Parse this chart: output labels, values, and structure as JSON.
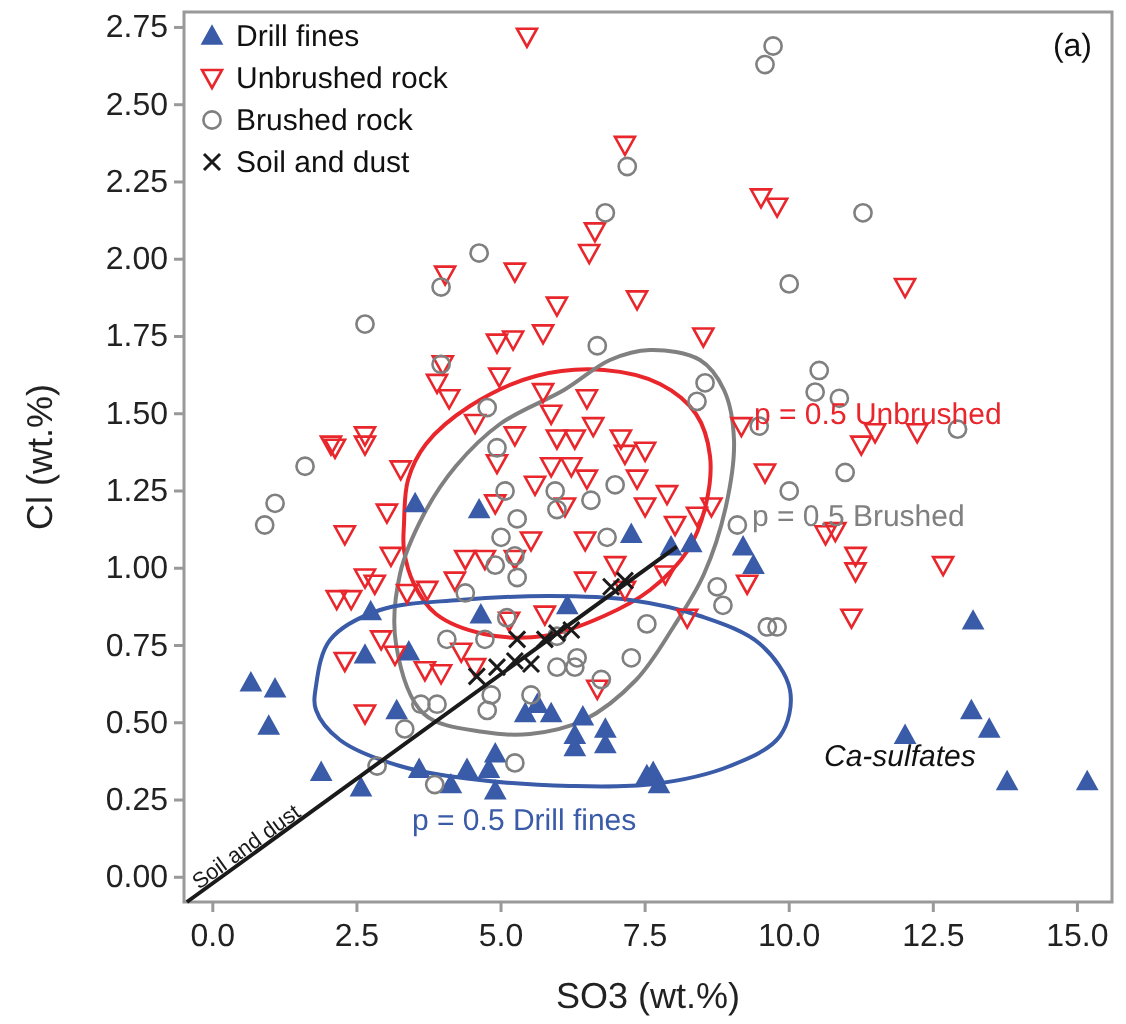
{
  "chart_data": {
    "type": "scatter",
    "xlabel": "SO3 (wt.%)",
    "ylabel": "Cl (wt.%)",
    "xlim": [
      -0.5,
      15.6
    ],
    "ylim": [
      -0.08,
      2.8
    ],
    "xticks": [
      {
        "value": 0,
        "label": "0.0"
      },
      {
        "value": 2.5,
        "label": "2.5"
      },
      {
        "value": 5,
        "label": "5.0"
      },
      {
        "value": 7.5,
        "label": "7.5"
      },
      {
        "value": 10,
        "label": "10.0"
      },
      {
        "value": 12.5,
        "label": "12.5"
      },
      {
        "value": 15,
        "label": "15.0"
      }
    ],
    "yticks": [
      {
        "value": 0,
        "label": "0.00"
      },
      {
        "value": 0.25,
        "label": "0.25"
      },
      {
        "value": 0.5,
        "label": "0.50"
      },
      {
        "value": 0.75,
        "label": "0.75"
      },
      {
        "value": 1,
        "label": "1.00"
      },
      {
        "value": 1.25,
        "label": "1.25"
      },
      {
        "value": 1.5,
        "label": "1.50"
      },
      {
        "value": 1.75,
        "label": "1.75"
      },
      {
        "value": 2,
        "label": "2.00"
      },
      {
        "value": 2.25,
        "label": "2.25"
      },
      {
        "value": 2.5,
        "label": "2.50"
      },
      {
        "value": 2.75,
        "label": "2.75"
      }
    ],
    "grid": false,
    "legend": "top left",
    "annotations": [
      "(a)",
      "p = 0.5 Unbrushed",
      "p = 0.5 Brushed",
      "p = 0.5 Drill fines",
      "Ca-sulfates"
    ],
    "series": [
      {
        "name": "Drill fines",
        "color": "#3a5ba8",
        "marker": "triangle",
        "x": [
          0.66,
          1.08,
          0.97,
          1.88,
          2.57,
          2.74,
          2.64,
          3.4,
          3.51,
          4.62,
          3.19,
          3.58,
          4.13,
          4.41,
          4.9,
          4.79,
          4.9,
          4.65,
          5.42,
          5.63,
          5.87,
          6.15,
          6.42,
          6.28,
          6.28,
          6.81,
          6.81,
          7.26,
          7.53,
          7.64,
          7.74,
          9.2,
          9.38,
          8.3,
          7.95,
          13.19,
          13.16,
          13.47,
          12.01,
          13.78,
          15.17
        ],
        "values": [
          0.63,
          0.61,
          0.49,
          0.34,
          0.29,
          0.86,
          0.72,
          0.73,
          1.21,
          1.19,
          0.54,
          0.35,
          0.3,
          0.35,
          0.4,
          0.35,
          0.28,
          0.85,
          0.53,
          0.56,
          0.53,
          0.88,
          0.52,
          0.46,
          0.42,
          0.48,
          0.43,
          1.11,
          0.33,
          0.34,
          0.3,
          1.07,
          1.01,
          1.08,
          1.07,
          0.83,
          0.54,
          0.48,
          0.46,
          0.31,
          0.31
        ]
      },
      {
        "name": "Unbrushed rock",
        "color": "#e8262b",
        "marker": "triangle-down",
        "x": [
          5.45,
          7.15,
          6.53,
          6.63,
          5.24,
          4.03,
          7.36,
          5.97,
          5.73,
          4.93,
          5.21,
          3.99,
          3.89,
          4.1,
          4.97,
          2.12,
          2.64,
          2.64,
          4.55,
          5.73,
          6.49,
          5.87,
          6.6,
          5.24,
          5.97,
          6.28,
          7.08,
          7.5,
          9.51,
          9.79,
          12.01,
          8.51,
          9.17,
          11.25,
          11.49,
          12.22,
          9.58,
          10.63,
          10.8,
          11.15,
          11.15,
          12.67,
          11.08,
          9.27,
          8.23,
          7.88,
          8.65,
          8.4,
          8.02,
          7.85,
          2.15,
          2.29,
          2.05,
          3.26,
          3.02,
          3.09,
          2.64,
          2.81,
          2.4,
          2.29,
          2.92,
          3.16,
          2.64,
          3.37,
          3.72,
          3.68,
          3.96,
          4.38,
          4.2,
          4.31,
          4.55,
          4.9,
          4.93,
          5.24,
          4.72,
          5.14,
          5.59,
          5.87,
          6.22,
          6.49,
          6.11,
          6.46,
          5.52,
          5.76,
          6.46,
          6.67,
          6.98,
          7.15,
          7.15,
          7.36,
          7.5
        ],
        "values": [
          2.72,
          2.37,
          2.02,
          2.09,
          1.96,
          1.95,
          1.87,
          1.85,
          1.76,
          1.73,
          1.74,
          1.66,
          1.6,
          1.55,
          1.62,
          1.39,
          1.43,
          1.4,
          1.47,
          1.57,
          1.55,
          1.5,
          1.46,
          1.43,
          1.42,
          1.42,
          1.42,
          1.38,
          2.2,
          2.17,
          1.91,
          1.75,
          1.46,
          1.4,
          1.44,
          1.44,
          1.31,
          1.11,
          1.12,
          1.04,
          0.99,
          1.01,
          0.84,
          0.95,
          0.84,
          1.24,
          1.2,
          1.17,
          1.14,
          0.98,
          0.9,
          1.11,
          1.4,
          1.32,
          1.18,
          1.04,
          0.97,
          0.95,
          0.9,
          0.7,
          0.77,
          0.72,
          0.53,
          0.92,
          0.93,
          0.67,
          0.66,
          1.03,
          0.96,
          0.73,
          0.68,
          1.21,
          1.34,
          1.03,
          1.03,
          0.83,
          1.27,
          1.33,
          1.33,
          1.29,
          1.2,
          1.09,
          1.09,
          0.85,
          0.96,
          0.61,
          1.01,
          0.93,
          1.37,
          1.29,
          1.2
        ]
      },
      {
        "name": "Brushed rock",
        "color": "#808080",
        "marker": "circle",
        "x": [
          7.19,
          6.81,
          4.62,
          3.96,
          2.64,
          6.67,
          3.96,
          4.76,
          4.93,
          9.72,
          9.58,
          11.28,
          10.0,
          10.52,
          10.45,
          10.87,
          8.54,
          8.4,
          9.48,
          12.92,
          10.97,
          10.0,
          9.1,
          8.75,
          8.85,
          9.62,
          9.79,
          7.53,
          1.6,
          1.08,
          0.9,
          5.07,
          5.94,
          5.97,
          5.28,
          5.0,
          5.24,
          5.28,
          4.9,
          6.56,
          6.98,
          6.84,
          4.38,
          4.06,
          4.72,
          5.1,
          5.97,
          6.32,
          6.28,
          5.97,
          6.74,
          7.26,
          3.89,
          4.83,
          4.76,
          5.52,
          3.33,
          2.85,
          3.85,
          5.24,
          3.61
        ],
        "values": [
          2.3,
          2.15,
          2.02,
          1.91,
          1.79,
          1.72,
          1.66,
          1.52,
          1.39,
          2.69,
          2.63,
          2.15,
          1.92,
          1.64,
          1.57,
          1.55,
          1.6,
          1.54,
          1.46,
          1.45,
          1.31,
          1.25,
          1.14,
          0.94,
          0.88,
          0.81,
          0.81,
          0.82,
          1.33,
          1.21,
          1.14,
          1.25,
          1.25,
          1.19,
          1.16,
          1.1,
          1.04,
          0.97,
          1.01,
          1.22,
          1.27,
          1.1,
          0.92,
          0.77,
          0.77,
          0.84,
          0.78,
          0.71,
          0.68,
          0.68,
          0.64,
          0.71,
          0.56,
          0.59,
          0.54,
          0.59,
          0.48,
          0.36,
          0.3,
          0.37,
          0.56
        ]
      },
      {
        "name": "Soil and dust",
        "color": "#1a1a1a",
        "marker": "cross",
        "x": [
          4.58,
          4.93,
          5.24,
          5.52,
          5.76,
          5.97,
          6.22,
          5.28,
          6.91,
          7.15
        ],
        "values": [
          0.65,
          0.68,
          0.7,
          0.69,
          0.77,
          0.79,
          0.8,
          0.77,
          0.94,
          0.96
        ]
      },
      {
        "name": "Soil and dust",
        "type": "line",
        "color": "#1a1a1a",
        "x": [
          -0.45,
          8.05
        ],
        "values": [
          -0.08,
          1.07
        ]
      }
    ]
  }
}
